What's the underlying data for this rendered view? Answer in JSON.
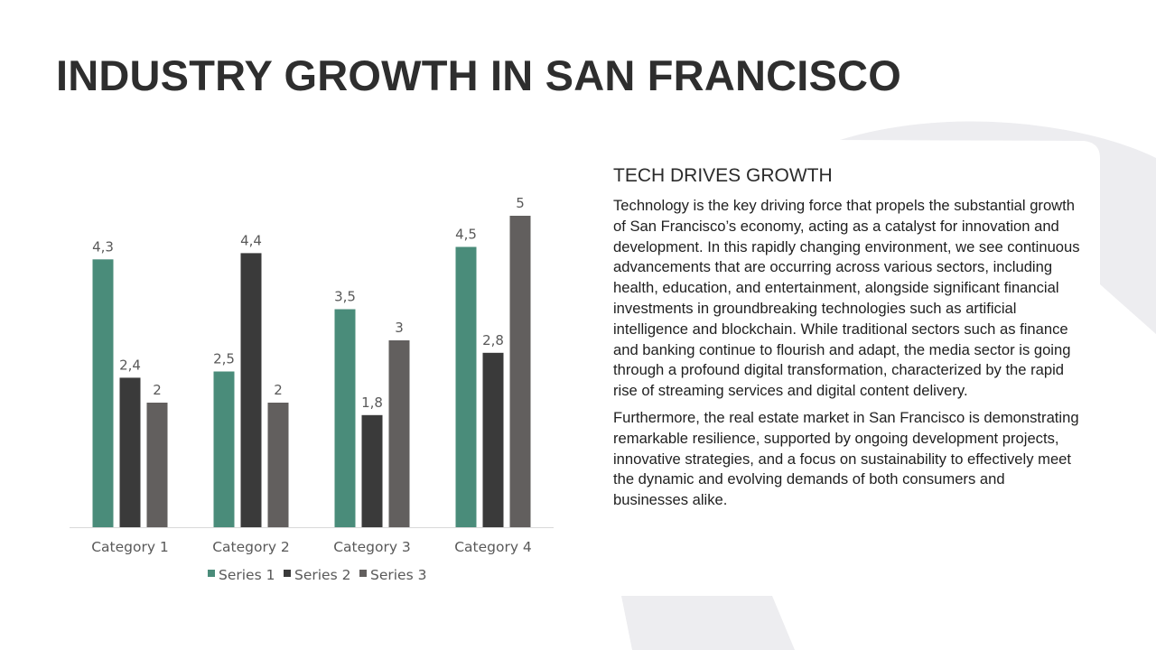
{
  "slide": {
    "title": "INDUSTRY GROWTH IN SAN FRANCISCO",
    "section_heading": "TECH DRIVES GROWTH",
    "paragraphs": [
      "Technology is the key driving force that propels the substantial growth of San Francisco’s economy, acting as a catalyst for innovation and development. In this rapidly changing environment, we see continuous advancements that are occurring across various sectors, including health, education, and entertainment, alongside significant financial investments in groundbreaking technologies such as artificial intelligence and blockchain. While traditional sectors such as finance and banking continue to flourish and adapt, the media sector is going through a profound digital transformation, characterized by the rapid rise of streaming services and digital content delivery.",
      "Furthermore, the real estate market in San Francisco is demonstrating remarkable resilience, supported by ongoing development projects, innovative strategies, and a focus on sustainability to effectively meet the dynamic and evolving demands of both consumers and businesses alike."
    ]
  },
  "colors": {
    "series_1": "#4a8c7a",
    "series_2": "#3a3a3a",
    "series_3": "#625f5e",
    "background_shape": "#ededf0",
    "axis_line": "#d9d9d9",
    "label_text": "#595959"
  },
  "chart_data": {
    "type": "bar",
    "categories": [
      "Category 1",
      "Category 2",
      "Category 3",
      "Category 4"
    ],
    "series": [
      {
        "name": "Series 1",
        "values": [
          4.3,
          2.5,
          3.5,
          4.5
        ],
        "labels": [
          "4,3",
          "2,5",
          "3,5",
          "4,5"
        ]
      },
      {
        "name": "Series 2",
        "values": [
          2.4,
          4.4,
          1.8,
          2.8
        ],
        "labels": [
          "2,4",
          "4,4",
          "1,8",
          "2,8"
        ]
      },
      {
        "name": "Series 3",
        "values": [
          2,
          2,
          3,
          5
        ],
        "labels": [
          "2",
          "2",
          "3",
          "5"
        ]
      }
    ],
    "title": "",
    "xlabel": "",
    "ylabel": "",
    "ylim": [
      0,
      5
    ],
    "grid": false,
    "legend": "bottom",
    "data_labels": true
  }
}
